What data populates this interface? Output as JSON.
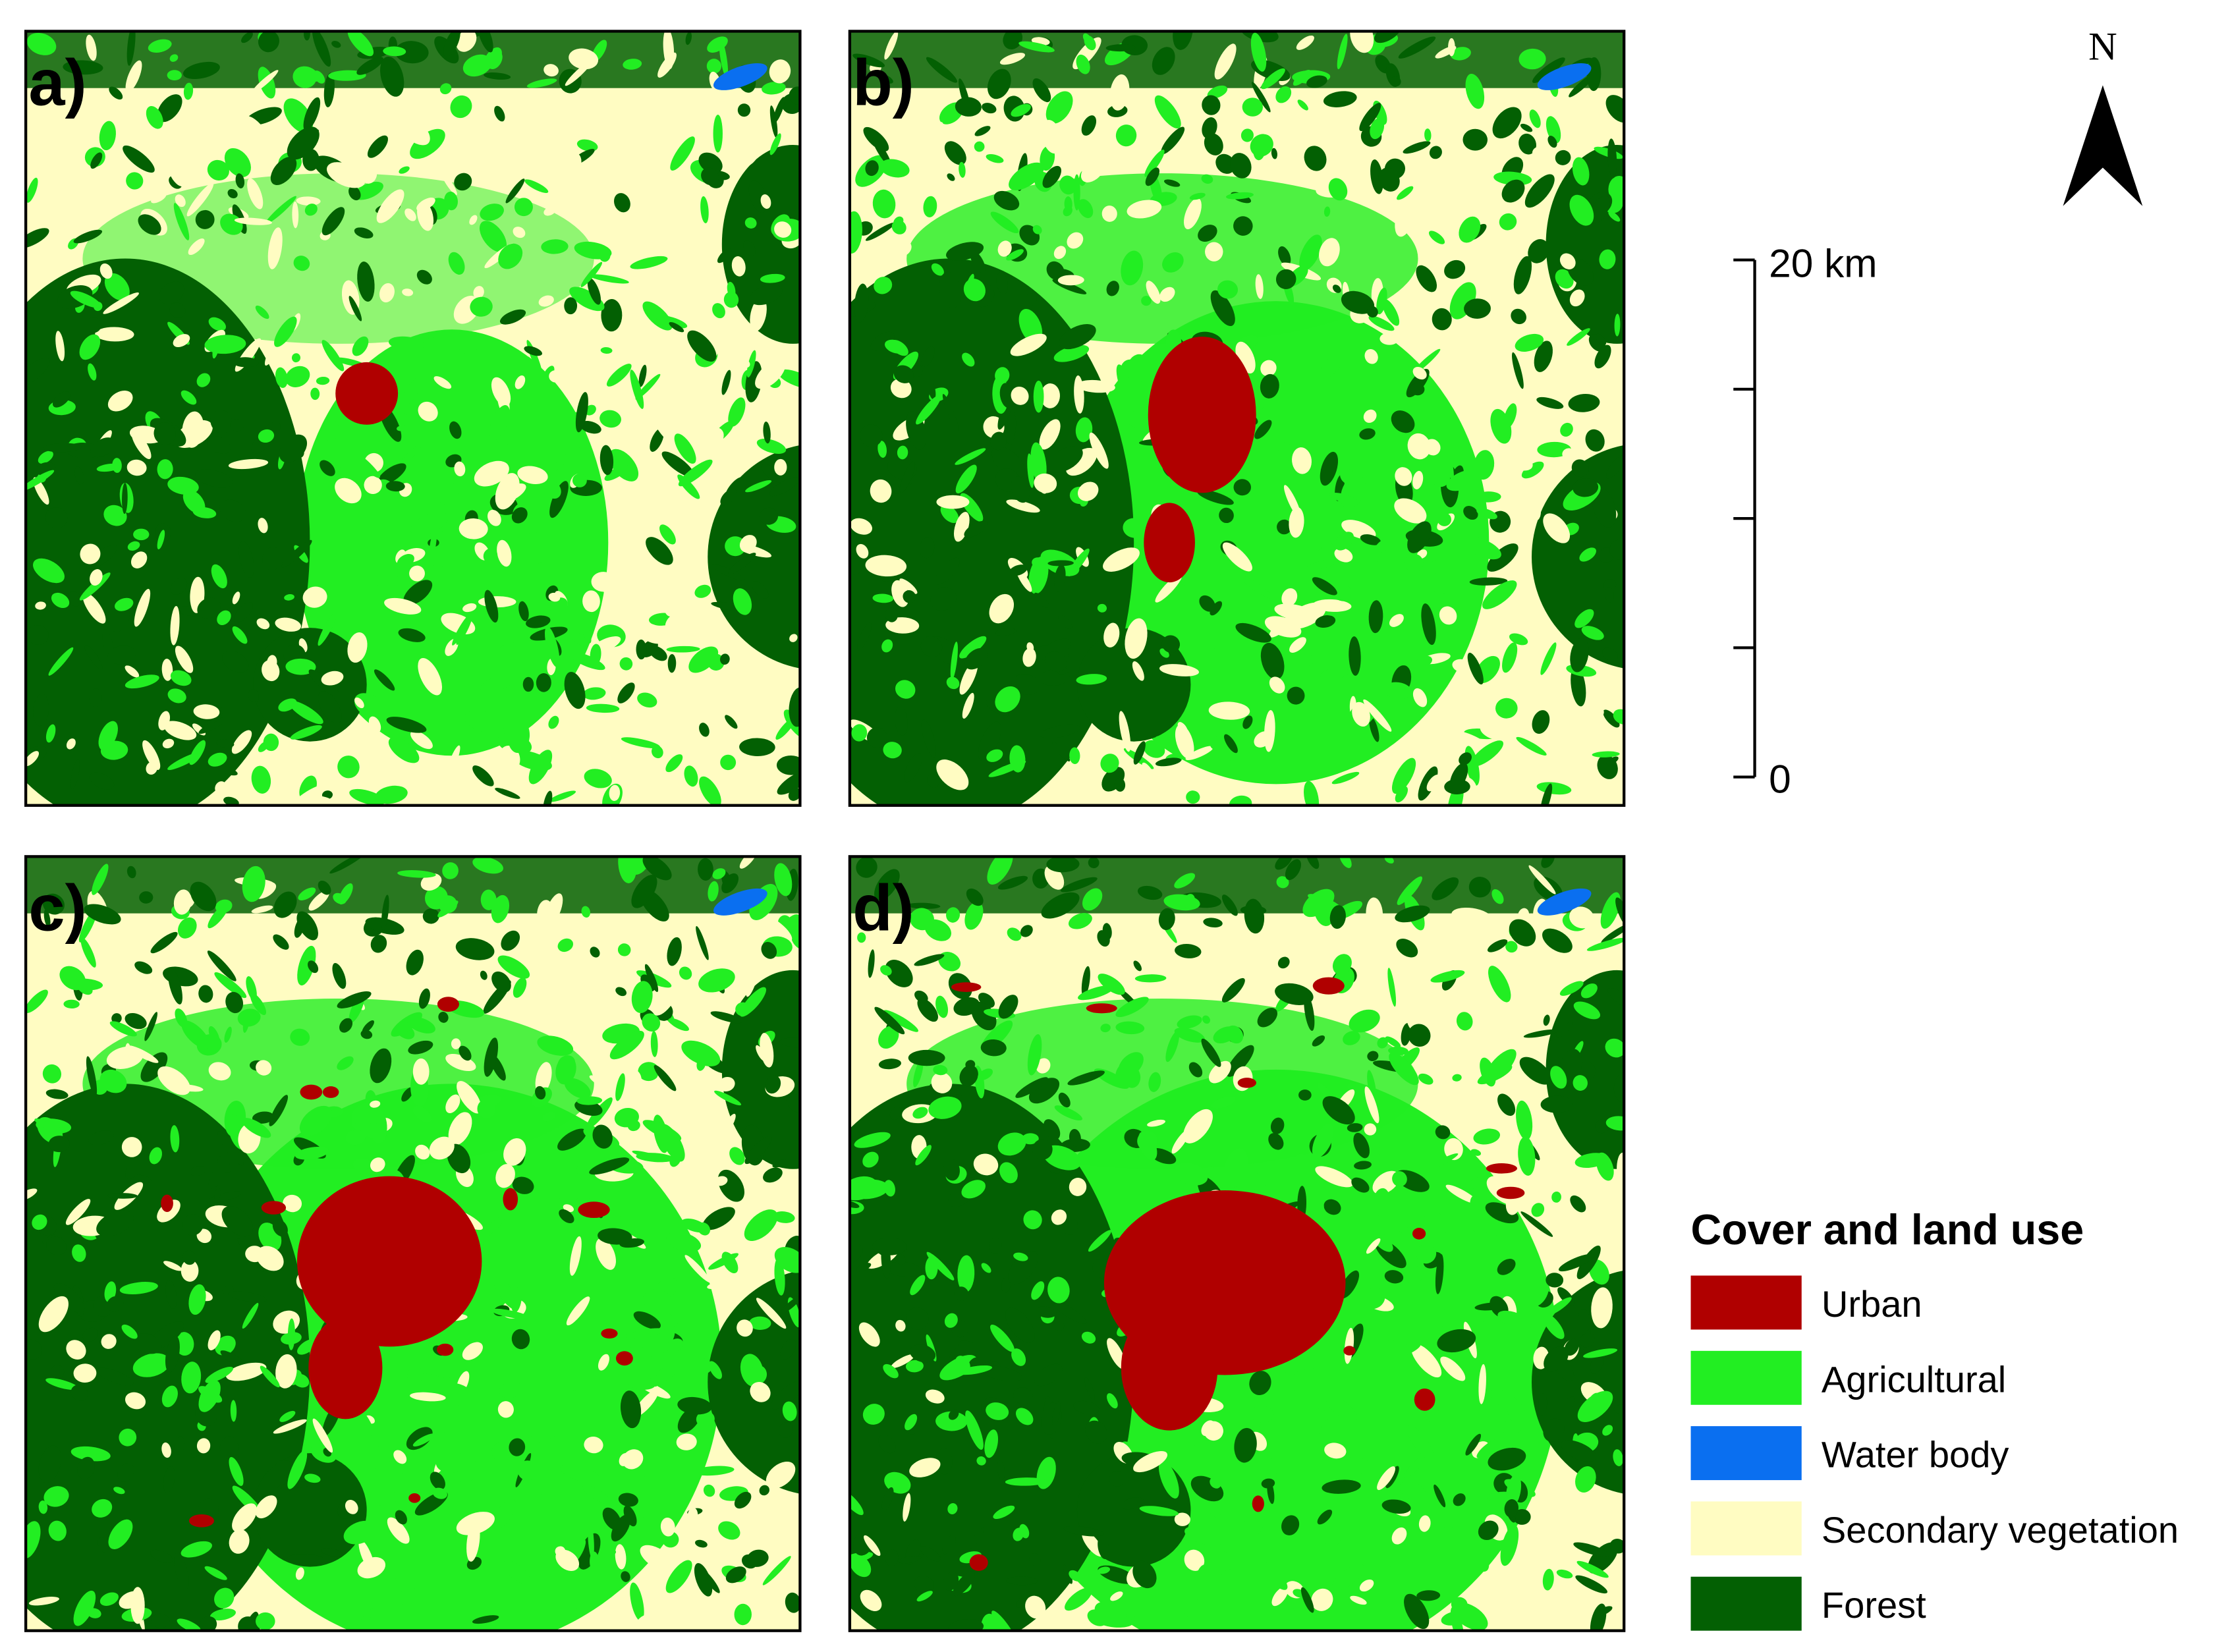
{
  "panels": [
    {
      "label": "a)"
    },
    {
      "label": "b)"
    },
    {
      "label": "c)"
    },
    {
      "label": "d)"
    }
  ],
  "north": "N",
  "scale_bar": {
    "max_label": "20 km",
    "min_label": "0"
  },
  "legend": {
    "title": "Cover and land use",
    "items": [
      {
        "label": "Urban",
        "color": "#b00000"
      },
      {
        "label": "Agricultural",
        "color": "#22ee22"
      },
      {
        "label": "Water body",
        "color": "#0a6ff0"
      },
      {
        "label": "Secondary vegetation",
        "color": "#fffcc2"
      },
      {
        "label": "Forest",
        "color": "#036003"
      }
    ]
  }
}
